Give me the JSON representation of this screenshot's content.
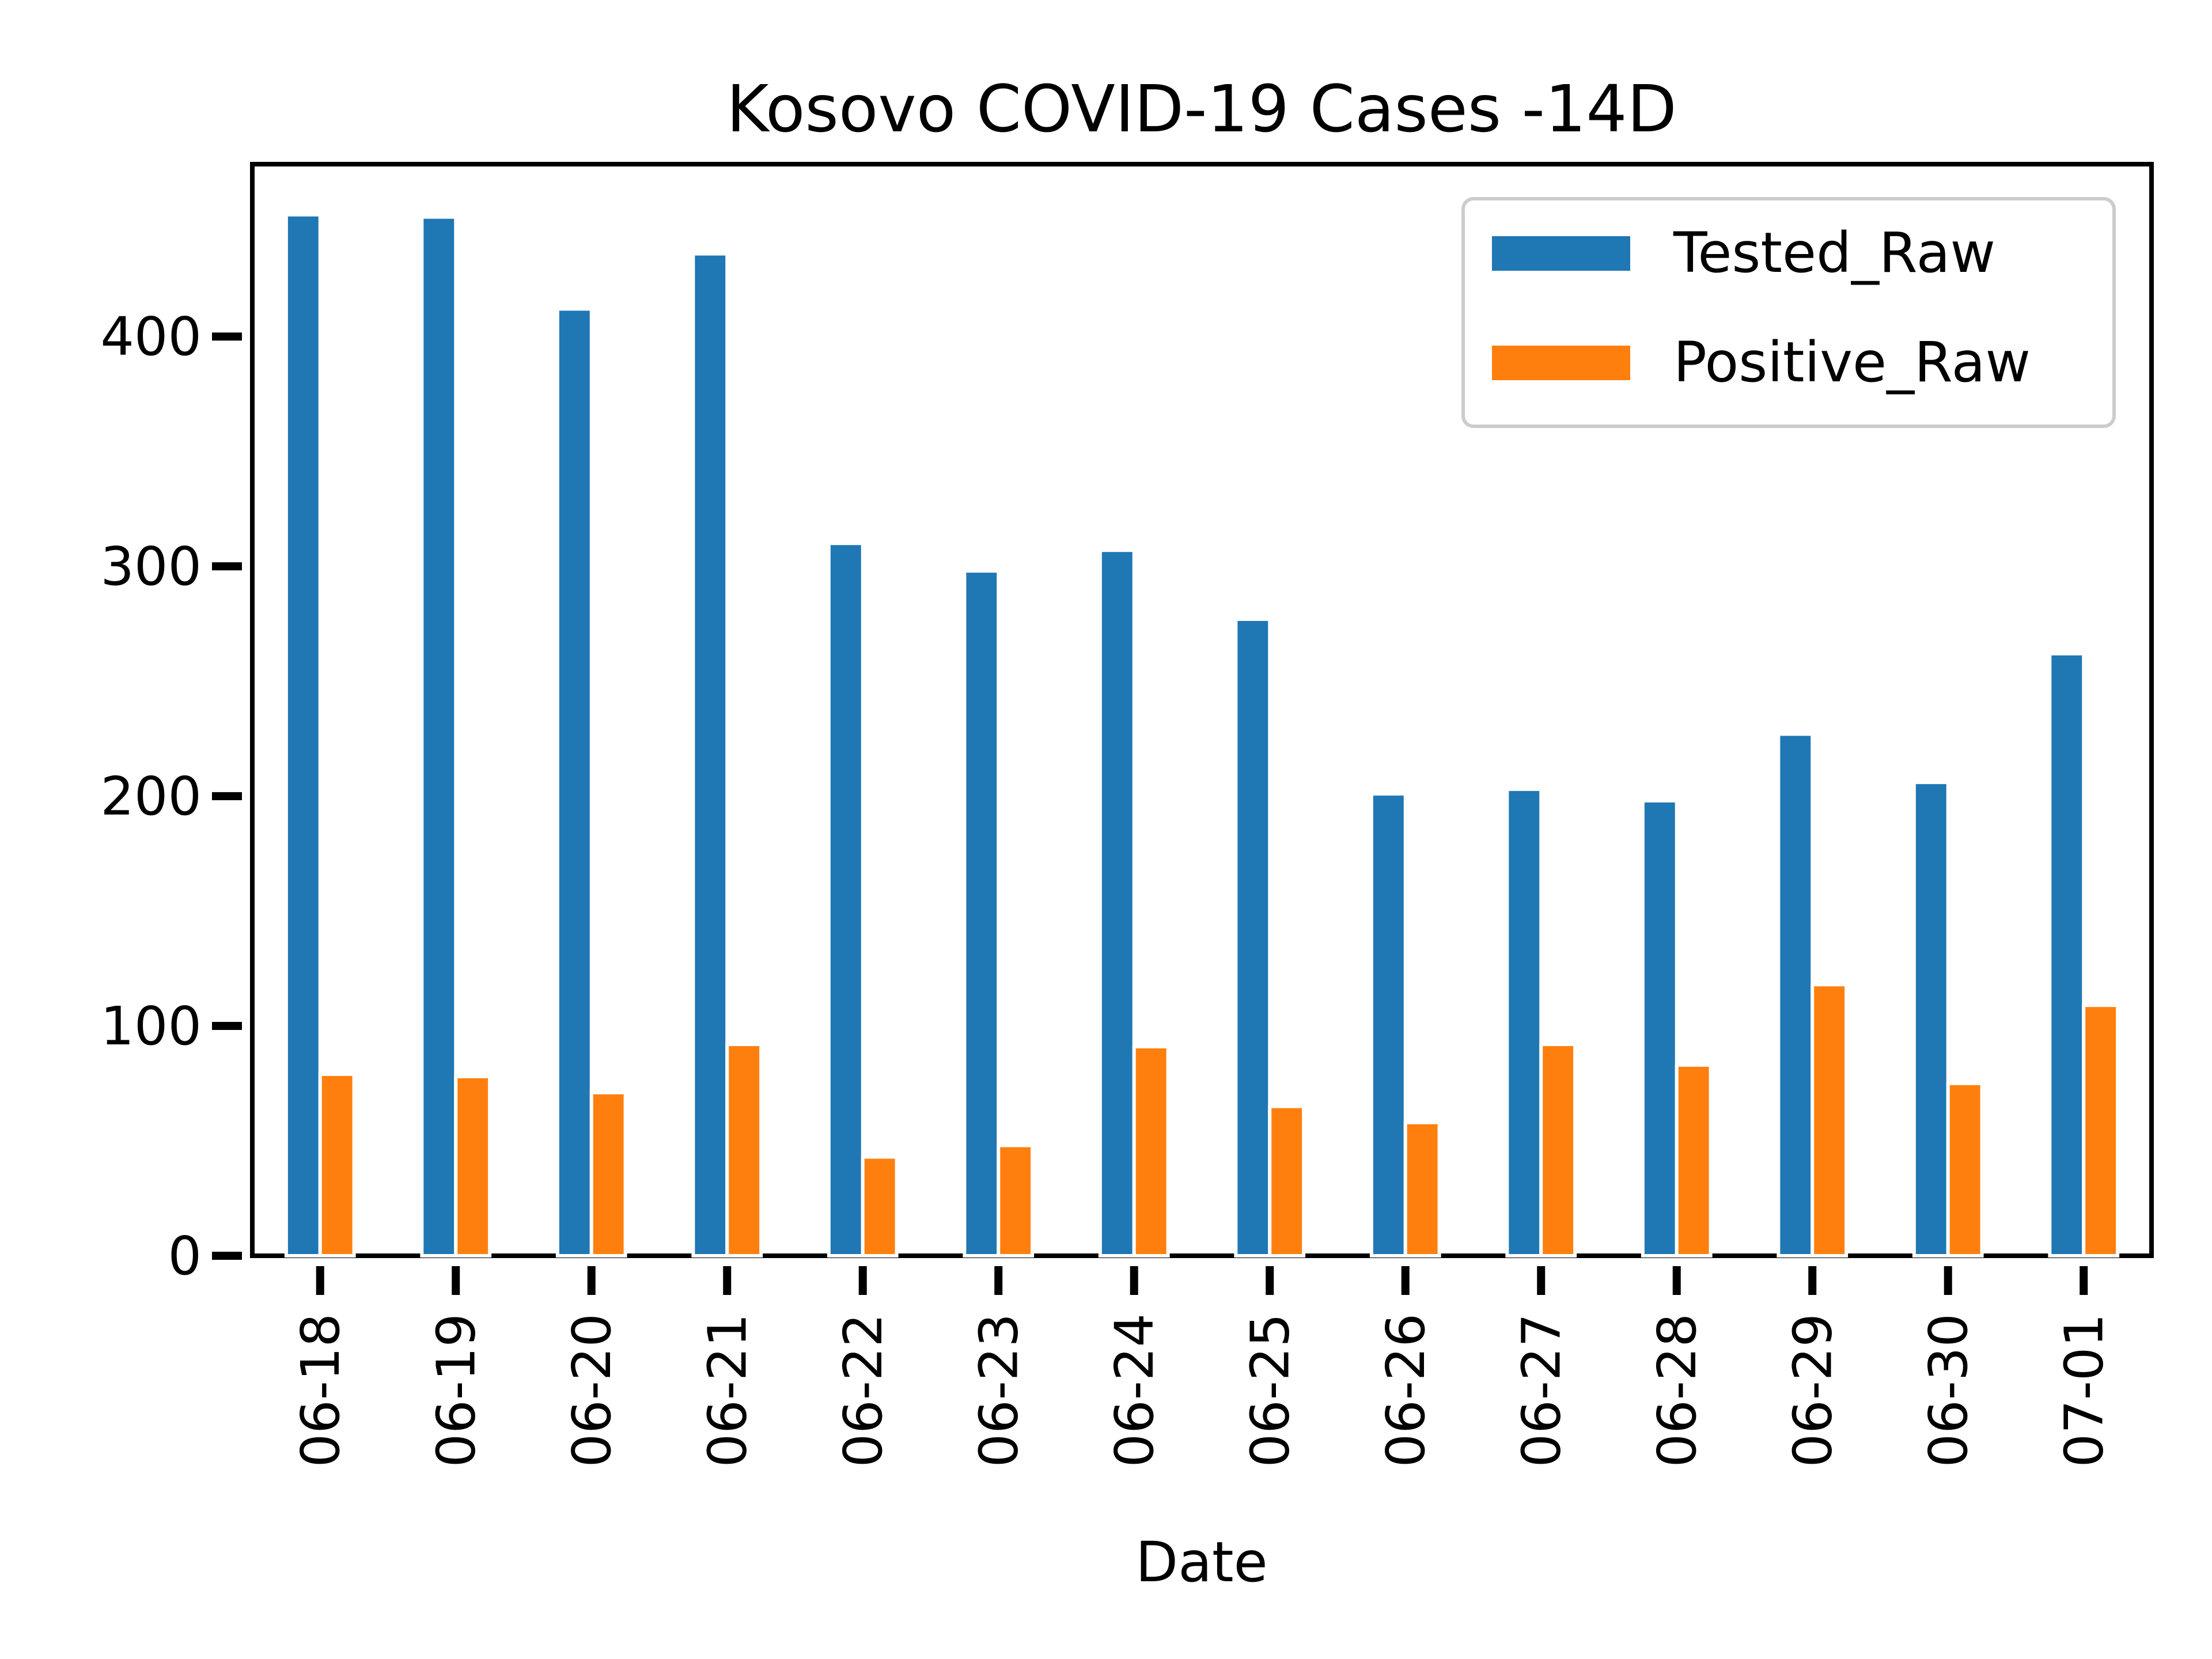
{
  "chart_data": {
    "type": "bar",
    "title": "Kosovo COVID-19 Cases -14D",
    "xlabel": "Date",
    "ylabel": "",
    "categories": [
      "06-18",
      "06-19",
      "06-20",
      "06-21",
      "06-22",
      "06-23",
      "06-24",
      "06-25",
      "06-26",
      "06-27",
      "06-28",
      "06-29",
      "06-30",
      "07-01"
    ],
    "series": [
      {
        "name": "Tested_Raw",
        "color": "#1f77b4",
        "values": [
          453,
          452,
          412,
          436,
          310,
          298,
          307,
          277,
          201,
          203,
          198,
          227,
          206,
          262
        ]
      },
      {
        "name": "Positive_Raw",
        "color": "#ff7f0e",
        "values": [
          79,
          78,
          71,
          92,
          43,
          48,
          91,
          65,
          58,
          92,
          83,
          118,
          75,
          109
        ]
      }
    ],
    "ylim": [
      0,
      475
    ],
    "yticks": [
      0,
      100,
      200,
      300,
      400
    ],
    "grid": false,
    "legend_position": "top-right"
  }
}
